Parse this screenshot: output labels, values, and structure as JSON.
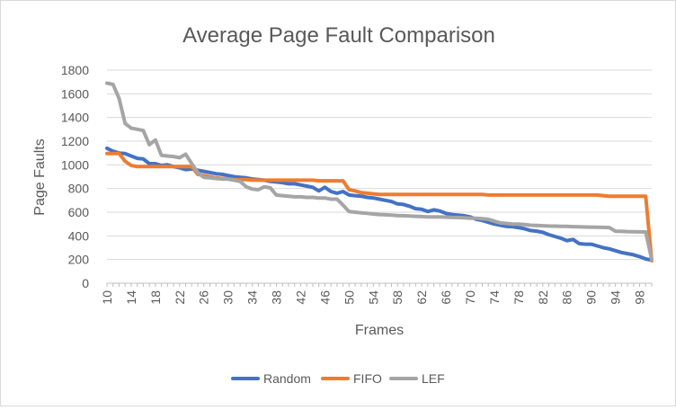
{
  "chart_data": {
    "type": "line",
    "title": "Average Page Fault Comparison",
    "xlabel": "Frames",
    "ylabel": "Page Faults",
    "ylim": [
      0,
      1800
    ],
    "yticks": [
      0,
      200,
      400,
      600,
      800,
      1000,
      1200,
      1400,
      1600,
      1800
    ],
    "xlim": [
      10,
      100
    ],
    "xticks": [
      10,
      14,
      18,
      22,
      26,
      30,
      34,
      38,
      42,
      46,
      50,
      54,
      58,
      62,
      66,
      70,
      74,
      78,
      82,
      86,
      90,
      94,
      98
    ],
    "grid": true,
    "legend": "bottom",
    "series": [
      {
        "name": "Random",
        "color": "#4472c4",
        "points": [
          [
            10,
            1140
          ],
          [
            11,
            1115
          ],
          [
            12,
            1100
          ],
          [
            13,
            1095
          ],
          [
            14,
            1075
          ],
          [
            15,
            1055
          ],
          [
            16,
            1050
          ],
          [
            17,
            1010
          ],
          [
            18,
            1010
          ],
          [
            19,
            995
          ],
          [
            20,
            1000
          ],
          [
            21,
            985
          ],
          [
            22,
            975
          ],
          [
            23,
            960
          ],
          [
            24,
            965
          ],
          [
            25,
            955
          ],
          [
            26,
            945
          ],
          [
            27,
            935
          ],
          [
            28,
            925
          ],
          [
            29,
            920
          ],
          [
            30,
            910
          ],
          [
            31,
            900
          ],
          [
            32,
            895
          ],
          [
            33,
            890
          ],
          [
            34,
            880
          ],
          [
            35,
            875
          ],
          [
            36,
            870
          ],
          [
            37,
            860
          ],
          [
            38,
            855
          ],
          [
            39,
            850
          ],
          [
            40,
            840
          ],
          [
            41,
            840
          ],
          [
            42,
            830
          ],
          [
            43,
            820
          ],
          [
            44,
            810
          ],
          [
            45,
            780
          ],
          [
            46,
            810
          ],
          [
            47,
            775
          ],
          [
            48,
            760
          ],
          [
            49,
            775
          ],
          [
            50,
            745
          ],
          [
            51,
            740
          ],
          [
            52,
            735
          ],
          [
            53,
            725
          ],
          [
            54,
            720
          ],
          [
            55,
            710
          ],
          [
            56,
            700
          ],
          [
            57,
            690
          ],
          [
            58,
            670
          ],
          [
            59,
            665
          ],
          [
            60,
            650
          ],
          [
            61,
            630
          ],
          [
            62,
            625
          ],
          [
            63,
            605
          ],
          [
            64,
            620
          ],
          [
            65,
            610
          ],
          [
            66,
            590
          ],
          [
            67,
            580
          ],
          [
            68,
            575
          ],
          [
            69,
            570
          ],
          [
            70,
            560
          ],
          [
            71,
            540
          ],
          [
            72,
            530
          ],
          [
            73,
            515
          ],
          [
            74,
            500
          ],
          [
            75,
            490
          ],
          [
            76,
            480
          ],
          [
            77,
            478
          ],
          [
            78,
            470
          ],
          [
            79,
            460
          ],
          [
            80,
            445
          ],
          [
            81,
            440
          ],
          [
            82,
            430
          ],
          [
            83,
            410
          ],
          [
            84,
            395
          ],
          [
            85,
            380
          ],
          [
            86,
            360
          ],
          [
            87,
            370
          ],
          [
            88,
            335
          ],
          [
            89,
            330
          ],
          [
            90,
            330
          ],
          [
            91,
            315
          ],
          [
            92,
            300
          ],
          [
            93,
            290
          ],
          [
            94,
            275
          ],
          [
            95,
            260
          ],
          [
            96,
            250
          ],
          [
            97,
            240
          ],
          [
            98,
            225
          ],
          [
            99,
            205
          ],
          [
            100,
            195
          ]
        ]
      },
      {
        "name": "FIFO",
        "color": "#ed7d31",
        "points": [
          [
            10,
            1095
          ],
          [
            11,
            1095
          ],
          [
            12,
            1095
          ],
          [
            13,
            1030
          ],
          [
            14,
            995
          ],
          [
            15,
            985
          ],
          [
            16,
            985
          ],
          [
            17,
            985
          ],
          [
            18,
            985
          ],
          [
            19,
            985
          ],
          [
            20,
            985
          ],
          [
            21,
            985
          ],
          [
            22,
            985
          ],
          [
            23,
            985
          ],
          [
            24,
            985
          ],
          [
            25,
            920
          ],
          [
            26,
            910
          ],
          [
            27,
            900
          ],
          [
            28,
            890
          ],
          [
            29,
            885
          ],
          [
            30,
            880
          ],
          [
            31,
            875
          ],
          [
            32,
            875
          ],
          [
            33,
            875
          ],
          [
            34,
            870
          ],
          [
            35,
            870
          ],
          [
            36,
            870
          ],
          [
            37,
            870
          ],
          [
            38,
            870
          ],
          [
            39,
            870
          ],
          [
            40,
            870
          ],
          [
            41,
            870
          ],
          [
            42,
            870
          ],
          [
            43,
            870
          ],
          [
            44,
            870
          ],
          [
            45,
            865
          ],
          [
            46,
            865
          ],
          [
            47,
            865
          ],
          [
            48,
            865
          ],
          [
            49,
            865
          ],
          [
            50,
            790
          ],
          [
            51,
            780
          ],
          [
            52,
            765
          ],
          [
            53,
            760
          ],
          [
            54,
            755
          ],
          [
            55,
            750
          ],
          [
            56,
            750
          ],
          [
            57,
            750
          ],
          [
            58,
            750
          ],
          [
            59,
            750
          ],
          [
            60,
            750
          ],
          [
            61,
            750
          ],
          [
            62,
            750
          ],
          [
            63,
            750
          ],
          [
            64,
            750
          ],
          [
            65,
            750
          ],
          [
            66,
            750
          ],
          [
            67,
            750
          ],
          [
            68,
            750
          ],
          [
            69,
            750
          ],
          [
            70,
            750
          ],
          [
            71,
            750
          ],
          [
            72,
            750
          ],
          [
            73,
            745
          ],
          [
            74,
            745
          ],
          [
            75,
            745
          ],
          [
            76,
            745
          ],
          [
            77,
            745
          ],
          [
            78,
            745
          ],
          [
            79,
            745
          ],
          [
            80,
            745
          ],
          [
            81,
            745
          ],
          [
            82,
            745
          ],
          [
            83,
            745
          ],
          [
            84,
            745
          ],
          [
            85,
            745
          ],
          [
            86,
            745
          ],
          [
            87,
            745
          ],
          [
            88,
            745
          ],
          [
            89,
            745
          ],
          [
            90,
            745
          ],
          [
            91,
            745
          ],
          [
            92,
            740
          ],
          [
            93,
            735
          ],
          [
            94,
            735
          ],
          [
            95,
            735
          ],
          [
            96,
            735
          ],
          [
            97,
            735
          ],
          [
            98,
            735
          ],
          [
            99,
            735
          ],
          [
            100,
            190
          ]
        ]
      },
      {
        "name": "LEF",
        "color": "#a5a5a5",
        "points": [
          [
            10,
            1690
          ],
          [
            11,
            1680
          ],
          [
            12,
            1560
          ],
          [
            13,
            1350
          ],
          [
            14,
            1310
          ],
          [
            15,
            1300
          ],
          [
            16,
            1290
          ],
          [
            17,
            1170
          ],
          [
            18,
            1210
          ],
          [
            19,
            1080
          ],
          [
            20,
            1075
          ],
          [
            21,
            1070
          ],
          [
            22,
            1060
          ],
          [
            23,
            1090
          ],
          [
            24,
            1010
          ],
          [
            25,
            935
          ],
          [
            26,
            895
          ],
          [
            27,
            890
          ],
          [
            28,
            885
          ],
          [
            29,
            880
          ],
          [
            30,
            880
          ],
          [
            31,
            870
          ],
          [
            32,
            860
          ],
          [
            33,
            815
          ],
          [
            34,
            795
          ],
          [
            35,
            790
          ],
          [
            36,
            815
          ],
          [
            37,
            805
          ],
          [
            38,
            745
          ],
          [
            39,
            740
          ],
          [
            40,
            735
          ],
          [
            41,
            730
          ],
          [
            42,
            730
          ],
          [
            43,
            725
          ],
          [
            44,
            725
          ],
          [
            45,
            720
          ],
          [
            46,
            720
          ],
          [
            47,
            710
          ],
          [
            48,
            710
          ],
          [
            49,
            660
          ],
          [
            50,
            605
          ],
          [
            51,
            600
          ],
          [
            52,
            595
          ],
          [
            53,
            590
          ],
          [
            54,
            585
          ],
          [
            55,
            580
          ],
          [
            56,
            578
          ],
          [
            57,
            575
          ],
          [
            58,
            572
          ],
          [
            59,
            570
          ],
          [
            60,
            568
          ],
          [
            61,
            565
          ],
          [
            62,
            563
          ],
          [
            63,
            560
          ],
          [
            64,
            560
          ],
          [
            65,
            560
          ],
          [
            66,
            558
          ],
          [
            67,
            556
          ],
          [
            68,
            555
          ],
          [
            69,
            553
          ],
          [
            70,
            550
          ],
          [
            71,
            548
          ],
          [
            72,
            545
          ],
          [
            73,
            540
          ],
          [
            74,
            525
          ],
          [
            75,
            510
          ],
          [
            76,
            505
          ],
          [
            77,
            500
          ],
          [
            78,
            500
          ],
          [
            79,
            495
          ],
          [
            80,
            490
          ],
          [
            81,
            488
          ],
          [
            82,
            485
          ],
          [
            83,
            483
          ],
          [
            84,
            482
          ],
          [
            85,
            480
          ],
          [
            86,
            480
          ],
          [
            87,
            478
          ],
          [
            88,
            476
          ],
          [
            89,
            475
          ],
          [
            90,
            474
          ],
          [
            91,
            473
          ],
          [
            92,
            472
          ],
          [
            93,
            470
          ],
          [
            94,
            440
          ],
          [
            95,
            438
          ],
          [
            96,
            436
          ],
          [
            97,
            435
          ],
          [
            98,
            434
          ],
          [
            99,
            433
          ],
          [
            100,
            200
          ]
        ]
      }
    ]
  }
}
